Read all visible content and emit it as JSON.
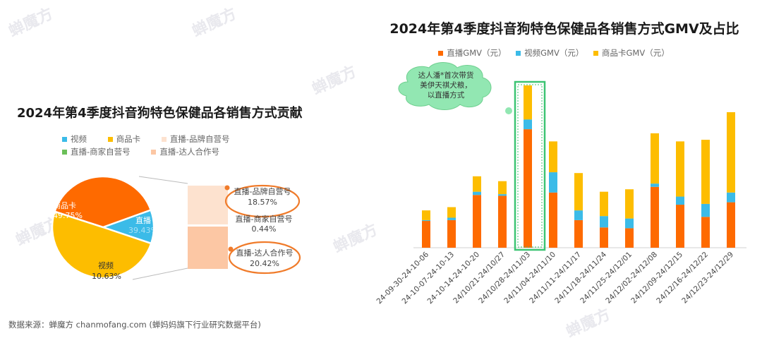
{
  "chart_data": [
    {
      "type": "pie",
      "title": "2024年第4季度抖音狗特色保健品各销售方式贡献",
      "legend": [
        {
          "name": "视频",
          "color": "#3bbbe8"
        },
        {
          "name": "商品卡",
          "color": "#fdbd00"
        },
        {
          "name": "直播-品牌自营号",
          "color": "#fde2cf"
        },
        {
          "name": "直播-商家自营号",
          "color": "#6bbf59"
        },
        {
          "name": "直播-达人合作号",
          "color": "#fcc7a4"
        }
      ],
      "slices": [
        {
          "name": "商品卡",
          "label": "商品卡",
          "value_label": "49.75%",
          "value": 49.75,
          "color": "#fdbd00"
        },
        {
          "name": "直播",
          "label": "直播",
          "value_label": "39.43%",
          "value": 39.43,
          "color": "#fe6a00"
        },
        {
          "name": "视频",
          "label": "视频",
          "value_label": "10.63%",
          "value": 10.63,
          "color": "#3bbbe8"
        }
      ],
      "breakdown": [
        {
          "name": "直播-品牌自营号",
          "value_label": "18.57%",
          "value": 18.57,
          "color": "#fde2cf"
        },
        {
          "name": "直播-商家自营号",
          "value_label": "0.44%",
          "value": 0.44,
          "color": "#6bbf59"
        },
        {
          "name": "直播-达人合作号",
          "value_label": "20.42%",
          "value": 20.42,
          "color": "#fcc7a4"
        }
      ]
    },
    {
      "type": "bar",
      "stacked": true,
      "title": "2024年第4季度抖音狗特色保健品各销售方式GMV及占比",
      "categories": [
        "24-09-30-24-10-06",
        "24-10-07-24-10-13",
        "24-10-14-24-10-20",
        "24/10/21-24/10/27",
        "24/10/28-24/11/03",
        "24/11/04-24/11/10",
        "24/11/11-24/11/17",
        "24/11/18-24/11/24",
        "24/11/25-24/12/01",
        "24/12/02-24/12/08",
        "24/12/09-24/12/15",
        "24/12/16-24/12/22",
        "24/12/23-24/12/29"
      ],
      "series": [
        {
          "name": "直播GMV（元）",
          "color": "#fe6a00",
          "values": [
            33,
            34,
            65,
            64,
            146,
            68,
            34,
            25,
            24,
            75,
            53,
            38,
            56
          ]
        },
        {
          "name": "视频GMV（元）",
          "color": "#3bbbe8",
          "values": [
            1,
            3,
            4,
            2,
            12,
            25,
            12,
            14,
            12,
            4,
            10,
            16,
            12
          ]
        },
        {
          "name": "商品卡GMV（元）",
          "color": "#fdbd00",
          "values": [
            12,
            13,
            19,
            16,
            42,
            38,
            46,
            30,
            36,
            62,
            68,
            79,
            99
          ]
        }
      ],
      "y_axis_shown": false,
      "grid": false,
      "highlight_index": 4,
      "annotation": "达人潘*首次带货美伊天祺犬粮，以直播方式"
    }
  ],
  "source_text": "数据来源：蝉魔方 chanmofang.com (蝉妈妈旗下行业研究数据平台)"
}
